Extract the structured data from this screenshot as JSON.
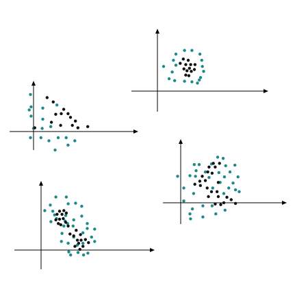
{
  "colors": {
    "background": "#ffffff",
    "axis": "#000000",
    "teal": "#1b8a8a",
    "black": "#111111"
  },
  "chart_data": [
    {
      "type": "scatter",
      "title": "",
      "xlabel": "",
      "ylabel": "",
      "grid": false,
      "legend": "none",
      "series": [
        {
          "color": "teal",
          "points": [
            [
              -0.5,
              6.0
            ],
            [
              3.8,
              4.3
            ],
            [
              -0.4,
              4.0
            ],
            [
              1.5,
              3.8
            ],
            [
              -0.7,
              3.5
            ],
            [
              -0.4,
              2.5
            ],
            [
              1.5,
              2.0
            ],
            [
              0.0,
              0.5
            ],
            [
              1.4,
              0.5
            ],
            [
              2.8,
              0.8
            ],
            [
              1.2,
              -1.0
            ],
            [
              2.5,
              -1.5
            ],
            [
              4.0,
              -1.0
            ],
            [
              5.3,
              -1.0
            ],
            [
              6.7,
              -1.5
            ],
            [
              5.6,
              -2.2
            ],
            [
              3.5,
              -3.0
            ],
            [
              -0.5,
              -1.0
            ]
          ]
        },
        {
          "color": "black",
          "points": [
            [
              2.2,
              5.5
            ],
            [
              3.2,
              4.8
            ],
            [
              4.9,
              3.6
            ],
            [
              3.6,
              2.8
            ],
            [
              4.5,
              2.9
            ],
            [
              5.6,
              2.9
            ],
            [
              6.0,
              2.3
            ],
            [
              6.8,
              1.7
            ],
            [
              2.9,
              1.5
            ],
            [
              4.4,
              1.0
            ],
            [
              6.3,
              1.0
            ],
            [
              7.2,
              0.6
            ],
            [
              8.8,
              0.8
            ],
            [
              0.2,
              0.6
            ]
          ]
        }
      ]
    },
    {
      "type": "scatter",
      "title": "",
      "xlabel": "",
      "ylabel": "",
      "grid": false,
      "legend": "none",
      "series": [
        {
          "color": "teal",
          "points": [
            [
              3.0,
              6.0
            ],
            [
              4.4,
              6.6
            ],
            [
              5.6,
              6.6
            ],
            [
              6.9,
              6.0
            ],
            [
              2.6,
              5.0
            ],
            [
              7.2,
              5.0
            ],
            [
              1.0,
              4.0
            ],
            [
              3.0,
              4.2
            ],
            [
              7.3,
              4.0
            ],
            [
              2.4,
              3.1
            ],
            [
              7.5,
              3.2
            ],
            [
              1.9,
              2.0
            ],
            [
              7.0,
              2.2
            ],
            [
              2.8,
              1.7
            ],
            [
              4.4,
              1.6
            ],
            [
              5.6,
              1.5
            ],
            [
              6.5,
              1.3
            ],
            [
              6.8,
              1.8
            ]
          ]
        },
        {
          "color": "black",
          "points": [
            [
              4.2,
              5.2
            ],
            [
              5.0,
              5.0
            ],
            [
              3.7,
              4.5
            ],
            [
              4.6,
              4.3
            ],
            [
              5.4,
              4.3
            ],
            [
              6.1,
              4.3
            ],
            [
              4.3,
              3.6
            ],
            [
              5.2,
              3.7
            ],
            [
              6.0,
              3.5
            ],
            [
              4.8,
              3.3
            ],
            [
              5.5,
              3.2
            ],
            [
              4.6,
              2.6
            ],
            [
              5.1,
              2.5
            ]
          ]
        }
      ]
    },
    {
      "type": "scatter",
      "title": "",
      "xlabel": "",
      "ylabel": "",
      "grid": false,
      "legend": "none",
      "series": [
        {
          "color": "teal",
          "points": [
            [
              6.0,
              7.4
            ],
            [
              6.9,
              7.2
            ],
            [
              2.2,
              6.2
            ],
            [
              3.0,
              6.2
            ],
            [
              5.0,
              6.3
            ],
            [
              7.3,
              6.0
            ],
            [
              8.8,
              6.1
            ],
            [
              2.5,
              5.2
            ],
            [
              4.0,
              5.0
            ],
            [
              6.2,
              4.9
            ],
            [
              8.0,
              5.0
            ],
            [
              -0.5,
              4.3
            ],
            [
              1.5,
              4.4
            ],
            [
              2.4,
              4.3
            ],
            [
              4.6,
              4.1
            ],
            [
              7.1,
              4.2
            ],
            [
              9.3,
              4.2
            ],
            [
              6.4,
              3.3
            ],
            [
              8.5,
              3.2
            ],
            [
              0.5,
              2.4
            ],
            [
              5.2,
              2.4
            ],
            [
              7.8,
              2.4
            ],
            [
              8.9,
              2.1
            ],
            [
              2.1,
              1.5
            ],
            [
              7.0,
              1.5
            ],
            [
              9.5,
              1.8
            ],
            [
              0.5,
              0.3
            ],
            [
              1.9,
              -1.0
            ],
            [
              3.6,
              -0.5
            ],
            [
              5.1,
              -0.5
            ],
            [
              7.2,
              -1.2
            ],
            [
              5.7,
              -1.8
            ],
            [
              3.6,
              -2.3
            ],
            [
              1.6,
              -2.6
            ],
            [
              1.5,
              -1.8
            ]
          ]
        },
        {
          "color": "black",
          "points": [
            [
              5.3,
              6.4
            ],
            [
              6.3,
              6.4
            ],
            [
              4.6,
              5.8
            ],
            [
              5.6,
              5.8
            ],
            [
              4.4,
              5.0
            ],
            [
              5.1,
              4.8
            ],
            [
              3.5,
              4.3
            ],
            [
              3.1,
              3.5
            ],
            [
              4.0,
              3.6
            ],
            [
              6.1,
              3.3
            ],
            [
              2.3,
              3.0
            ],
            [
              3.2,
              2.8
            ],
            [
              4.3,
              2.4
            ],
            [
              5.0,
              1.8
            ],
            [
              5.9,
              1.8
            ],
            [
              4.5,
              1.0
            ],
            [
              6.1,
              1.0
            ],
            [
              7.5,
              0.9
            ],
            [
              8.2,
              0.5
            ],
            [
              7.0,
              0.0
            ],
            [
              5.6,
              -0.2
            ],
            [
              6.5,
              -0.3
            ],
            [
              8.9,
              -0.1
            ]
          ]
        }
      ]
    },
    {
      "type": "scatter",
      "title": "",
      "xlabel": "",
      "ylabel": "",
      "grid": false,
      "legend": "none",
      "series": [
        {
          "color": "teal",
          "points": [
            [
              2.4,
              8.6
            ],
            [
              4.1,
              8.6
            ],
            [
              1.5,
              7.3
            ],
            [
              4.4,
              7.5
            ],
            [
              5.6,
              7.6
            ],
            [
              6.6,
              7.1
            ],
            [
              0.6,
              6.4
            ],
            [
              1.9,
              6.3
            ],
            [
              2.2,
              5.7
            ],
            [
              4.0,
              5.6
            ],
            [
              6.6,
              5.5
            ],
            [
              2.5,
              5.1
            ],
            [
              1.6,
              4.6
            ],
            [
              5.3,
              4.9
            ],
            [
              3.9,
              4.7
            ],
            [
              4.3,
              4.3
            ],
            [
              7.5,
              4.3
            ],
            [
              3.7,
              3.9
            ],
            [
              5.2,
              3.9
            ],
            [
              7.5,
              3.5
            ],
            [
              8.7,
              3.4
            ],
            [
              3.4,
              2.7
            ],
            [
              6.8,
              2.8
            ],
            [
              5.3,
              2.1
            ],
            [
              8.2,
              2.1
            ],
            [
              3.3,
              1.4
            ],
            [
              8.7,
              1.4
            ],
            [
              4.4,
              1.1
            ],
            [
              5.9,
              0.8
            ],
            [
              6.8,
              1.1
            ],
            [
              4.5,
              -0.3
            ],
            [
              6.0,
              -0.4
            ],
            [
              7.6,
              -0.5
            ],
            [
              4.8,
              -0.8
            ],
            [
              6.9,
              -0.8
            ]
          ]
        },
        {
          "color": "black",
          "points": [
            [
              3.0,
              6.3
            ],
            [
              3.7,
              6.4
            ],
            [
              2.6,
              5.8
            ],
            [
              3.4,
              5.8
            ],
            [
              4.1,
              6.0
            ],
            [
              3.0,
              5.0
            ],
            [
              3.6,
              5.1
            ],
            [
              2.4,
              4.9
            ],
            [
              4.0,
              4.5
            ],
            [
              4.4,
              3.9
            ],
            [
              2.8,
              4.3
            ],
            [
              3.2,
              4.1
            ],
            [
              5.7,
              3.2
            ],
            [
              4.7,
              2.6
            ],
            [
              5.3,
              2.3
            ],
            [
              6.4,
              2.5
            ],
            [
              5.9,
              1.6
            ],
            [
              6.5,
              1.6
            ],
            [
              7.2,
              1.7
            ],
            [
              6.1,
              1.1
            ],
            [
              7.7,
              1.2
            ],
            [
              6.8,
              0.6
            ],
            [
              5.5,
              0.6
            ],
            [
              6.3,
              0.1
            ]
          ]
        }
      ]
    }
  ]
}
